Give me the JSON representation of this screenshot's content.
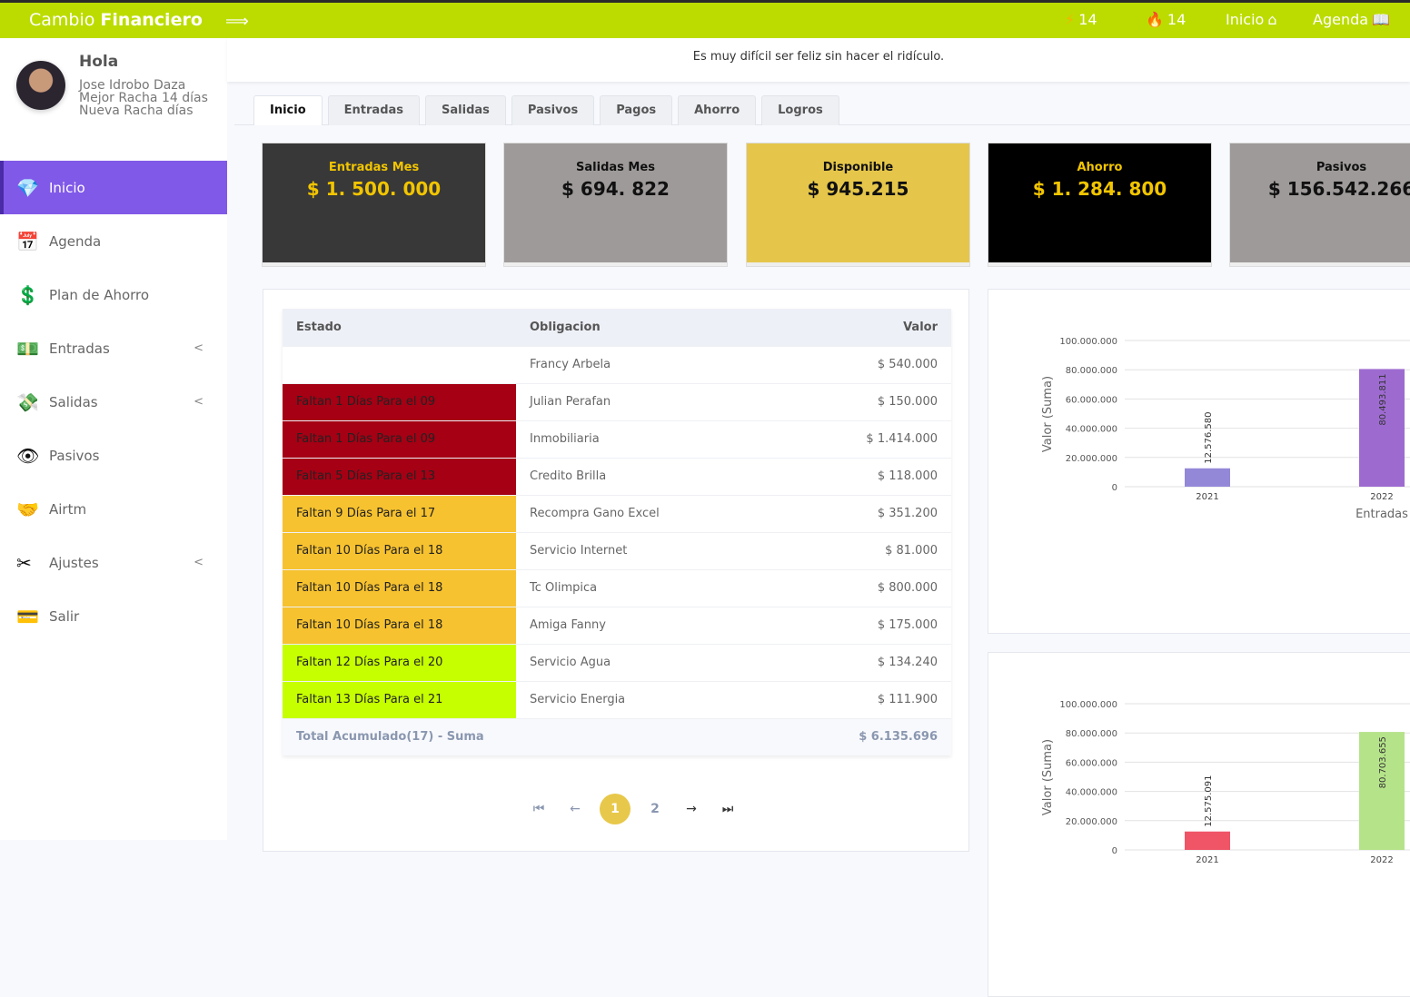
{
  "header": {
    "brand_light": "Cambio ",
    "brand_bold": "Financiero",
    "streak1": "14",
    "streak2": "14",
    "inicio": "Inicio",
    "agenda": "Agenda"
  },
  "user": {
    "greeting": "Hola",
    "name": "Jose Idrobo Daza",
    "best": "Mejor Racha 14 días",
    "current": "Nueva Racha días"
  },
  "sidebar": {
    "items": [
      {
        "label": "Inicio",
        "icon": "💎"
      },
      {
        "label": "Agenda",
        "icon": "📅"
      },
      {
        "label": "Plan de Ahorro",
        "icon": "💲"
      },
      {
        "label": "Entradas",
        "icon": "💵"
      },
      {
        "label": "Salidas",
        "icon": "💸"
      },
      {
        "label": "Pasivos",
        "icon": "👁"
      },
      {
        "label": "Airtm",
        "icon": "🤝"
      },
      {
        "label": "Ajustes",
        "icon": "✂"
      },
      {
        "label": "Salir",
        "icon": "💳"
      }
    ]
  },
  "quote": "Es muy difícil ser feliz sin hacer el ridículo.",
  "tabs": [
    "Inicio",
    "Entradas",
    "Salidas",
    "Pasivos",
    "Pagos",
    "Ahorro",
    "Logros"
  ],
  "cards": [
    {
      "title": "Entradas Mes",
      "value": "$ 1. 500. 000",
      "bg": "#383838",
      "color": "#f2c500"
    },
    {
      "title": "Salidas Mes",
      "value": "$ 694. 822",
      "bg": "#9e9a99",
      "color": "#111"
    },
    {
      "title": "Disponible",
      "value": "$ 945.215",
      "bg": "#e5c64a",
      "color": "#111"
    },
    {
      "title": "Ahorro",
      "value": "$ 1. 284. 800",
      "bg": "#000000",
      "color": "#f2c500"
    },
    {
      "title": "Pasivos",
      "value": "$ 156.542.266",
      "bg": "#9e9a99",
      "color": "#111"
    }
  ],
  "table": {
    "headers": [
      "Estado",
      "Obligacion",
      "Valor"
    ],
    "rows": [
      {
        "estado": "",
        "obligacion": "Francy Arbela",
        "valor": "$ 540.000",
        "color": "#ffffff"
      },
      {
        "estado": "Faltan 1 Días Para el 09",
        "obligacion": "Julian Perafan",
        "valor": "$ 150.000",
        "color": "#a50014"
      },
      {
        "estado": "Faltan 1 Días Para el 09",
        "obligacion": "Inmobiliaria",
        "valor": "$ 1.414.000",
        "color": "#a50014"
      },
      {
        "estado": "Faltan 5 Días Para el 13",
        "obligacion": "Credito Brilla",
        "valor": "$ 118.000",
        "color": "#a50014"
      },
      {
        "estado": "Faltan 9 Días Para el 17",
        "obligacion": "Recompra Gano Excel",
        "valor": "$ 351.200",
        "color": "#f7c22f"
      },
      {
        "estado": "Faltan 10 Días Para el 18",
        "obligacion": "Servicio Internet",
        "valor": "$ 81.000",
        "color": "#f7c22f"
      },
      {
        "estado": "Faltan 10 Días Para el 18",
        "obligacion": "Tc Olimpica",
        "valor": "$ 800.000",
        "color": "#f7c22f"
      },
      {
        "estado": "Faltan 10 Días Para el 18",
        "obligacion": "Amiga Fanny",
        "valor": "$ 175.000",
        "color": "#f7c22f"
      },
      {
        "estado": "Faltan 12 Días Para el 20",
        "obligacion": "Servicio Agua",
        "valor": "$ 134.240",
        "color": "#c6ff00"
      },
      {
        "estado": "Faltan 13 Días Para el 21",
        "obligacion": "Servicio Energia",
        "valor": "$ 111.900",
        "color": "#c6ff00"
      }
    ],
    "total_label": "Total Acumulado(17) - Suma",
    "total_value": "$ 6.135.696"
  },
  "pagination": {
    "pages": [
      "1",
      "2"
    ],
    "current": "1"
  },
  "chart_data": [
    {
      "type": "bar",
      "categories": [
        "2021",
        "2022"
      ],
      "values": [
        12576580,
        80493811
      ],
      "labels": [
        "12.576.580",
        "80.493.811"
      ],
      "colors": [
        "#9388d8",
        "#9d6bd0"
      ],
      "ylabel": "Valor (Suma)",
      "xlabel": "Entradas",
      "ylim": [
        0,
        100000000
      ],
      "yticks": [
        "0",
        "20.000.000",
        "40.000.000",
        "60.000.000",
        "80.000.000",
        "100.000.000"
      ],
      "grid": true
    },
    {
      "type": "bar",
      "categories": [
        "2021",
        "2022"
      ],
      "values": [
        12575091,
        80703655
      ],
      "labels": [
        "12.575.091",
        "80.703.655"
      ],
      "colors": [
        "#ef5467",
        "#b5e38a"
      ],
      "ylabel": "Valor (Suma)",
      "ylim": [
        0,
        100000000
      ],
      "yticks": [
        "0",
        "20.000.000",
        "40.000.000",
        "60.000.000",
        "80.000.000",
        "100.000.000"
      ],
      "grid": true
    }
  ]
}
